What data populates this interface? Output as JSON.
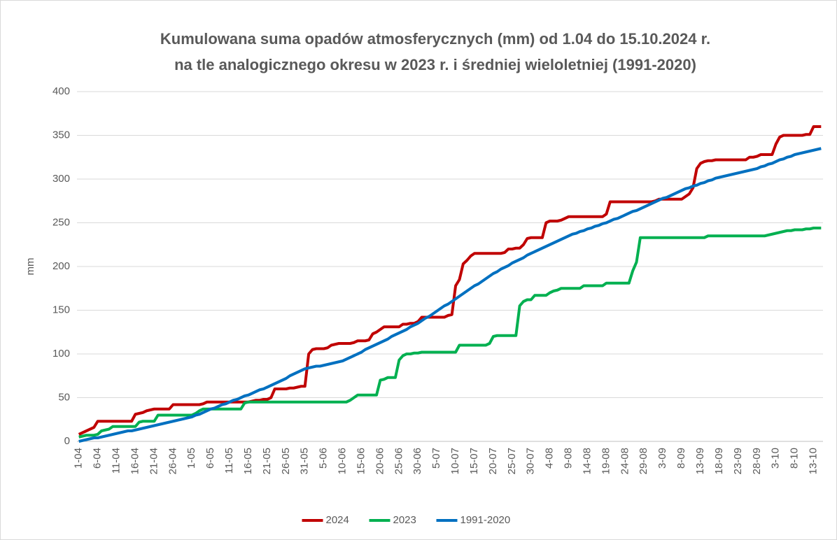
{
  "chart_data": {
    "type": "line",
    "title": [
      "Kumulowana suma opadów atmosferycznych (mm) od 1.04 do 15.10.2024 r.",
      "na tle analogicznego okresu w 2023 r. i średniej wieloletniej (1991-2020)"
    ],
    "ylabel": "mm",
    "categories": [
      "1-04",
      null,
      null,
      null,
      null,
      "6-04",
      null,
      null,
      null,
      null,
      "11-04",
      null,
      null,
      null,
      null,
      "16-04",
      null,
      null,
      null,
      null,
      "21-04",
      null,
      null,
      null,
      null,
      "26-04",
      null,
      null,
      null,
      null,
      "1-05",
      null,
      null,
      null,
      null,
      "6-05",
      null,
      null,
      null,
      null,
      "11-05",
      null,
      null,
      null,
      null,
      "16-05",
      null,
      null,
      null,
      null,
      "21-05",
      null,
      null,
      null,
      null,
      "26-05",
      null,
      null,
      null,
      null,
      "31-05",
      null,
      null,
      null,
      null,
      "5-06",
      null,
      null,
      null,
      null,
      "10-06",
      null,
      null,
      null,
      null,
      "15-06",
      null,
      null,
      null,
      null,
      "20-06",
      null,
      null,
      null,
      null,
      "25-06",
      null,
      null,
      null,
      null,
      "30-06",
      null,
      null,
      null,
      null,
      "5-07",
      null,
      null,
      null,
      null,
      "10-07",
      null,
      null,
      null,
      null,
      "15-07",
      null,
      null,
      null,
      null,
      "20-07",
      null,
      null,
      null,
      null,
      "25-07",
      null,
      null,
      null,
      null,
      "30-07",
      null,
      null,
      null,
      null,
      "4-08",
      null,
      null,
      null,
      null,
      "9-08",
      null,
      null,
      null,
      null,
      "14-08",
      null,
      null,
      null,
      null,
      "19-08",
      null,
      null,
      null,
      null,
      "24-08",
      null,
      null,
      null,
      null,
      "29-08",
      null,
      null,
      null,
      null,
      "3-09",
      null,
      null,
      null,
      null,
      "8-09",
      null,
      null,
      null,
      null,
      "13-09",
      null,
      null,
      null,
      null,
      "18-09",
      null,
      null,
      null,
      null,
      "23-09",
      null,
      null,
      null,
      null,
      "28-09",
      null,
      null,
      null,
      null,
      "3-10",
      null,
      null,
      null,
      null,
      "8-10",
      null,
      null,
      null,
      null,
      "13-10",
      null,
      null
    ],
    "series": [
      {
        "name": "2024",
        "color": "#c00000",
        "values": [
          8,
          10,
          12,
          14,
          16,
          23,
          23,
          23,
          23,
          23,
          23,
          23,
          23,
          23,
          23,
          31,
          32,
          33,
          35,
          36,
          37,
          37,
          37,
          37,
          37,
          42,
          42,
          42,
          42,
          42,
          42,
          42,
          42,
          43,
          45,
          45,
          45,
          45,
          45,
          45,
          45,
          45,
          45,
          45,
          45,
          45,
          46,
          47,
          47,
          48,
          48,
          50,
          60,
          60,
          60,
          60,
          61,
          61,
          62,
          63,
          63,
          100,
          105,
          106,
          106,
          106,
          107,
          110,
          111,
          112,
          112,
          112,
          112,
          113,
          115,
          115,
          115,
          116,
          123,
          125,
          128,
          131,
          131,
          131,
          131,
          131,
          134,
          134,
          135,
          135,
          137,
          142,
          142,
          142,
          142,
          142,
          142,
          142,
          144,
          145,
          178,
          185,
          203,
          207,
          212,
          215,
          215,
          215,
          215,
          215,
          215,
          215,
          215,
          216,
          220,
          220,
          221,
          221,
          225,
          232,
          233,
          233,
          233,
          233,
          250,
          252,
          252,
          252,
          253,
          255,
          257,
          257,
          257,
          257,
          257,
          257,
          257,
          257,
          257,
          257,
          260,
          274,
          274,
          274,
          274,
          274,
          274,
          274,
          274,
          274,
          274,
          274,
          274,
          275,
          277,
          277,
          277,
          277,
          277,
          277,
          277,
          280,
          283,
          290,
          312,
          318,
          320,
          321,
          321,
          322,
          322,
          322,
          322,
          322,
          322,
          322,
          322,
          322,
          325,
          325,
          326,
          328,
          328,
          328,
          328,
          340,
          348,
          350,
          350,
          350,
          350,
          350,
          350,
          351,
          351,
          360,
          360,
          360
        ]
      },
      {
        "name": "2023",
        "color": "#00b050",
        "values": [
          5,
          6,
          7,
          7,
          7,
          8,
          12,
          13,
          14,
          17,
          17,
          17,
          17,
          17,
          17,
          17,
          22,
          23,
          23,
          23,
          23,
          30,
          30,
          30,
          30,
          30,
          30,
          30,
          30,
          30,
          30,
          32,
          35,
          37,
          37,
          37,
          37,
          37,
          37,
          37,
          37,
          37,
          37,
          37,
          44,
          45,
          45,
          45,
          45,
          45,
          45,
          45,
          45,
          45,
          45,
          45,
          45,
          45,
          45,
          45,
          45,
          45,
          45,
          45,
          45,
          45,
          45,
          45,
          45,
          45,
          45,
          45,
          47,
          50,
          53,
          53,
          53,
          53,
          53,
          53,
          70,
          71,
          73,
          73,
          73,
          93,
          98,
          100,
          100,
          101,
          101,
          102,
          102,
          102,
          102,
          102,
          102,
          102,
          102,
          102,
          102,
          110,
          110,
          110,
          110,
          110,
          110,
          110,
          110,
          112,
          120,
          121,
          121,
          121,
          121,
          121,
          121,
          155,
          160,
          162,
          162,
          167,
          167,
          167,
          167,
          170,
          172,
          173,
          175,
          175,
          175,
          175,
          175,
          175,
          178,
          178,
          178,
          178,
          178,
          178,
          181,
          181,
          181,
          181,
          181,
          181,
          181,
          195,
          205,
          233,
          233,
          233,
          233,
          233,
          233,
          233,
          233,
          233,
          233,
          233,
          233,
          233,
          233,
          233,
          233,
          233,
          233,
          235,
          235,
          235,
          235,
          235,
          235,
          235,
          235,
          235,
          235,
          235,
          235,
          235,
          235,
          235,
          235,
          236,
          237,
          238,
          239,
          240,
          241,
          241,
          242,
          242,
          242,
          243,
          243,
          244,
          244,
          244
        ]
      },
      {
        "name": "1991-2020",
        "color": "#0070c0",
        "values": [
          0,
          1,
          2,
          3,
          4,
          4,
          5,
          6,
          7,
          8,
          9,
          10,
          11,
          12,
          12,
          13,
          14,
          15,
          16,
          17,
          18,
          19,
          20,
          21,
          22,
          23,
          24,
          25,
          26,
          27,
          28,
          30,
          31,
          33,
          35,
          37,
          38,
          40,
          42,
          43,
          45,
          47,
          48,
          50,
          52,
          53,
          55,
          57,
          59,
          60,
          62,
          64,
          66,
          68,
          70,
          72,
          75,
          77,
          79,
          81,
          83,
          84,
          85,
          86,
          86,
          87,
          88,
          89,
          90,
          91,
          92,
          94,
          96,
          98,
          100,
          102,
          105,
          107,
          109,
          111,
          113,
          115,
          117,
          120,
          122,
          124,
          126,
          128,
          131,
          133,
          135,
          138,
          141,
          143,
          146,
          149,
          152,
          155,
          157,
          160,
          163,
          166,
          169,
          172,
          175,
          178,
          180,
          183,
          186,
          189,
          192,
          194,
          197,
          199,
          201,
          204,
          206,
          208,
          210,
          213,
          215,
          217,
          219,
          221,
          223,
          225,
          227,
          229,
          231,
          233,
          235,
          237,
          238,
          240,
          241,
          243,
          244,
          246,
          247,
          249,
          250,
          252,
          254,
          255,
          257,
          259,
          261,
          263,
          264,
          266,
          268,
          270,
          272,
          274,
          276,
          278,
          279,
          281,
          283,
          285,
          287,
          289,
          290,
          292,
          293,
          295,
          296,
          298,
          299,
          301,
          302,
          303,
          304,
          305,
          306,
          307,
          308,
          309,
          310,
          311,
          312,
          314,
          315,
          317,
          318,
          320,
          322,
          323,
          325,
          326,
          328,
          329,
          330,
          331,
          332,
          333,
          334,
          335
        ]
      }
    ],
    "ylim": [
      0,
      400
    ],
    "yticks": [
      0,
      50,
      100,
      150,
      200,
      250,
      300,
      350,
      400
    ],
    "grid": true,
    "legend": "bottom"
  }
}
